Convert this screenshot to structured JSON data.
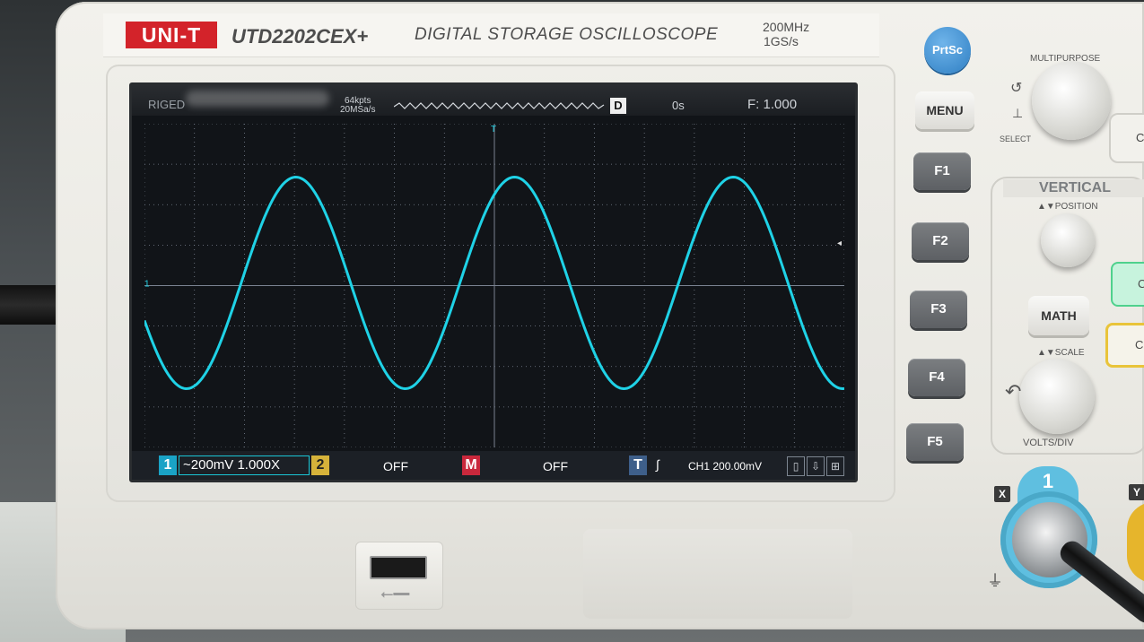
{
  "device": {
    "brand": "UNI-T",
    "model": "UTD2202CEX+",
    "description": "DIGITAL STORAGE OSCILLOSCOPE",
    "bandwidth": "200MHz",
    "sample_rate": "1GS/s"
  },
  "screen": {
    "status_left": "RIGED",
    "memory_depth": "64kpts",
    "acq_rate": "20MSa/s",
    "mode_badge": "D",
    "trigger_pos": "0s",
    "frequency": "F: 1.000",
    "trace_color": "#1fd2e6",
    "grid_color": "#7a8290",
    "waveform": {
      "type": "sine",
      "cycles_visible": 3.2,
      "ch1_marker": "1",
      "trigger_marker": "T"
    },
    "bottom_bar": {
      "ch1_tag": "1",
      "ch1_setting": "~200mV 1.000X",
      "ch2_tag": "2",
      "ch2_state": "OFF",
      "math_tag": "M",
      "math_state": "OFF",
      "trig_tag": "T",
      "trig_slope": "∫",
      "trig_setting": "CH1 200.00mV"
    }
  },
  "buttons": {
    "prtsc": "PrtSc",
    "menu": "MENU",
    "f1": "F1",
    "f2": "F2",
    "f3": "F3",
    "f4": "F4",
    "f5": "F5",
    "math": "MATH"
  },
  "panel": {
    "multipurpose": "MULTIPURPOSE",
    "select": "SELECT",
    "vertical": "VERTICAL",
    "position": "POSITION",
    "scale": "SCALE",
    "volts_div": "VOLTS/DIV",
    "ch1_label": "1",
    "x_label": "X",
    "y_label": "Y",
    "green_partial": "C",
    "yellow_partial": "C",
    "right_partial": "C"
  }
}
